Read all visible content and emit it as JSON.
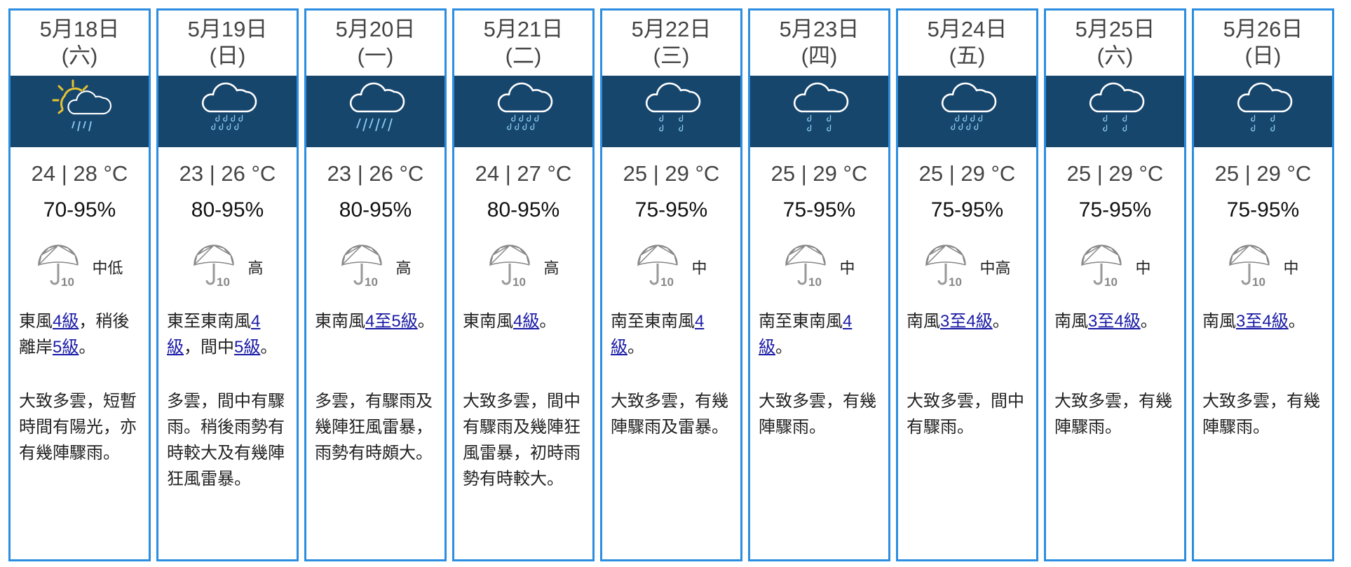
{
  "colors": {
    "border": "#2b8ee0",
    "band": "#17466d",
    "psr_fill": "#2dd4cf",
    "link": "#1a1aa6"
  },
  "days": [
    {
      "date": "5月18日",
      "weekday": "(六)",
      "icon": "sunny-periods-showers-icon",
      "temp": "24 | 28 °C",
      "humidity": "70-95%",
      "psr": "中低",
      "psr_level": 2,
      "wind": [
        {
          "t": "東風"
        },
        {
          "t": "4級",
          "link": true
        },
        {
          "t": "，稍後離岸"
        },
        {
          "t": "5級",
          "link": true
        },
        {
          "t": "。"
        }
      ],
      "desc": "大致多雲，短暫時間有陽光，亦有幾陣驟雨。"
    },
    {
      "date": "5月19日",
      "weekday": "(日)",
      "icon": "heavy-showers-icon",
      "temp": "23 | 26 °C",
      "humidity": "80-95%",
      "psr": "高",
      "psr_level": 6,
      "wind": [
        {
          "t": "東至東南風"
        },
        {
          "t": "4級",
          "link": true
        },
        {
          "t": "，間中"
        },
        {
          "t": "5級",
          "link": true
        },
        {
          "t": "。"
        }
      ],
      "desc": "多雲，間中有驟雨。稍後雨勢有時較大及有幾陣狂風雷暴。"
    },
    {
      "date": "5月20日",
      "weekday": "(一)",
      "icon": "heavy-rain-icon",
      "temp": "23 | 26 °C",
      "humidity": "80-95%",
      "psr": "高",
      "psr_level": 6,
      "wind": [
        {
          "t": "東南風"
        },
        {
          "t": "4至5級",
          "link": true
        },
        {
          "t": "。"
        }
      ],
      "desc": "多雲，有驟雨及幾陣狂風雷暴，雨勢有時頗大。"
    },
    {
      "date": "5月21日",
      "weekday": "(二)",
      "icon": "heavy-showers-icon",
      "temp": "24 | 27 °C",
      "humidity": "80-95%",
      "psr": "高",
      "psr_level": 6,
      "wind": [
        {
          "t": "東南風"
        },
        {
          "t": "4級",
          "link": true
        },
        {
          "t": "。"
        }
      ],
      "desc": "大致多雲，間中有驟雨及幾陣狂風雷暴，初時雨勢有時較大。"
    },
    {
      "date": "5月22日",
      "weekday": "(三)",
      "icon": "showers-icon",
      "temp": "25 | 29 °C",
      "humidity": "75-95%",
      "psr": "中",
      "psr_level": 3,
      "wind": [
        {
          "t": "南至東南風"
        },
        {
          "t": "4級",
          "link": true
        },
        {
          "t": "。"
        }
      ],
      "desc": "大致多雲，有幾陣驟雨及雷暴。"
    },
    {
      "date": "5月23日",
      "weekday": "(四)",
      "icon": "showers-icon",
      "temp": "25 | 29 °C",
      "humidity": "75-95%",
      "psr": "中",
      "psr_level": 3,
      "wind": [
        {
          "t": "南至東南風"
        },
        {
          "t": "4級",
          "link": true
        },
        {
          "t": "。"
        }
      ],
      "desc": "大致多雲，有幾陣驟雨。"
    },
    {
      "date": "5月24日",
      "weekday": "(五)",
      "icon": "heavy-showers-icon",
      "temp": "25 | 29 °C",
      "humidity": "75-95%",
      "psr": "中高",
      "psr_level": 4,
      "wind": [
        {
          "t": "南風"
        },
        {
          "t": "3至4級",
          "link": true
        },
        {
          "t": "。"
        }
      ],
      "desc": "大致多雲，間中有驟雨。"
    },
    {
      "date": "5月25日",
      "weekday": "(六)",
      "icon": "showers-icon",
      "temp": "25 | 29 °C",
      "humidity": "75-95%",
      "psr": "中",
      "psr_level": 3,
      "wind": [
        {
          "t": "南風"
        },
        {
          "t": "3至4級",
          "link": true
        },
        {
          "t": "。"
        }
      ],
      "desc": "大致多雲，有幾陣驟雨。"
    },
    {
      "date": "5月26日",
      "weekday": "(日)",
      "icon": "showers-icon",
      "temp": "25 | 29 °C",
      "humidity": "75-95%",
      "psr": "中",
      "psr_level": 3,
      "wind": [
        {
          "t": "南風"
        },
        {
          "t": "3至4級",
          "link": true
        },
        {
          "t": "。"
        }
      ],
      "desc": "大致多雲，有幾陣驟雨。"
    }
  ]
}
